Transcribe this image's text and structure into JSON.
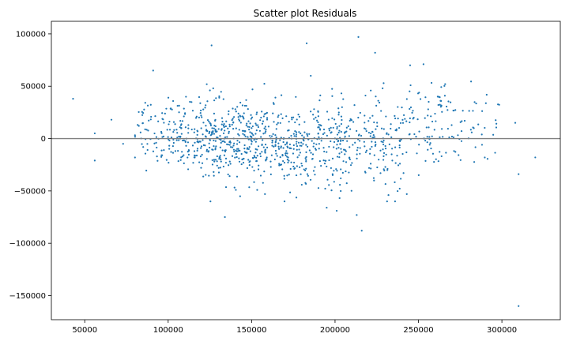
{
  "chart_data": {
    "type": "scatter",
    "title": "Scatter plot Residuals",
    "xlabel": "",
    "ylabel": "",
    "xlim": [
      30000,
      335000
    ],
    "ylim": [
      -173000,
      112000
    ],
    "x_ticks": [
      50000,
      100000,
      150000,
      200000,
      250000,
      300000
    ],
    "x_tick_labels": [
      "50000",
      "100000",
      "150000",
      "200000",
      "250000",
      "300000"
    ],
    "y_ticks": [
      100000,
      50000,
      0,
      -50000,
      -100000,
      -150000
    ],
    "y_tick_labels": [
      "100000",
      "50000",
      "0",
      "−50000",
      "−100000",
      "−150000"
    ],
    "reference_line": {
      "y": 0,
      "color": "#808080"
    },
    "point_color": "#1f77b4",
    "grid": false,
    "legend": "none",
    "outliers": [
      {
        "x": 43000,
        "y": 38000
      },
      {
        "x": 56000,
        "y": 5000
      },
      {
        "x": 56000,
        "y": -21000
      },
      {
        "x": 66000,
        "y": 18000
      },
      {
        "x": 73000,
        "y": -5000
      },
      {
        "x": 91000,
        "y": 65000
      },
      {
        "x": 126000,
        "y": 89000
      },
      {
        "x": 127000,
        "y": 48000
      },
      {
        "x": 134000,
        "y": -75000
      },
      {
        "x": 183000,
        "y": 91000
      },
      {
        "x": 214000,
        "y": 97000
      },
      {
        "x": 224000,
        "y": 82000
      },
      {
        "x": 213000,
        "y": -73000
      },
      {
        "x": 216000,
        "y": -88000
      },
      {
        "x": 195000,
        "y": -66000
      },
      {
        "x": 201000,
        "y": -69000
      },
      {
        "x": 245000,
        "y": 70000
      },
      {
        "x": 253000,
        "y": 71000
      },
      {
        "x": 266000,
        "y": 52000
      },
      {
        "x": 308000,
        "y": 15000
      },
      {
        "x": 310000,
        "y": -34000
      },
      {
        "x": 310000,
        "y": -160000
      },
      {
        "x": 320000,
        "y": -18000
      },
      {
        "x": 158000,
        "y": -53000
      },
      {
        "x": 243000,
        "y": -53000
      }
    ],
    "clusters": [
      {
        "x_min": 80000,
        "x_max": 100000,
        "y_mean": 8000,
        "y_sd": 16000,
        "count": 60
      },
      {
        "x_min": 100000,
        "x_max": 125000,
        "y_mean": 3000,
        "y_sd": 17000,
        "count": 150
      },
      {
        "x_min": 125000,
        "x_max": 155000,
        "y_mean": -3000,
        "y_sd": 18000,
        "count": 260
      },
      {
        "x_min": 155000,
        "x_max": 180000,
        "y_mean": -6000,
        "y_sd": 19000,
        "count": 180
      },
      {
        "x_min": 180000,
        "x_max": 210000,
        "y_mean": -6000,
        "y_sd": 21000,
        "count": 190
      },
      {
        "x_min": 210000,
        "x_max": 240000,
        "y_mean": -2000,
        "y_sd": 23000,
        "count": 130
      },
      {
        "x_min": 240000,
        "x_max": 270000,
        "y_mean": 9000,
        "y_sd": 23000,
        "count": 90
      },
      {
        "x_min": 270000,
        "x_max": 300000,
        "y_mean": 10000,
        "y_sd": 20000,
        "count": 45
      }
    ]
  }
}
